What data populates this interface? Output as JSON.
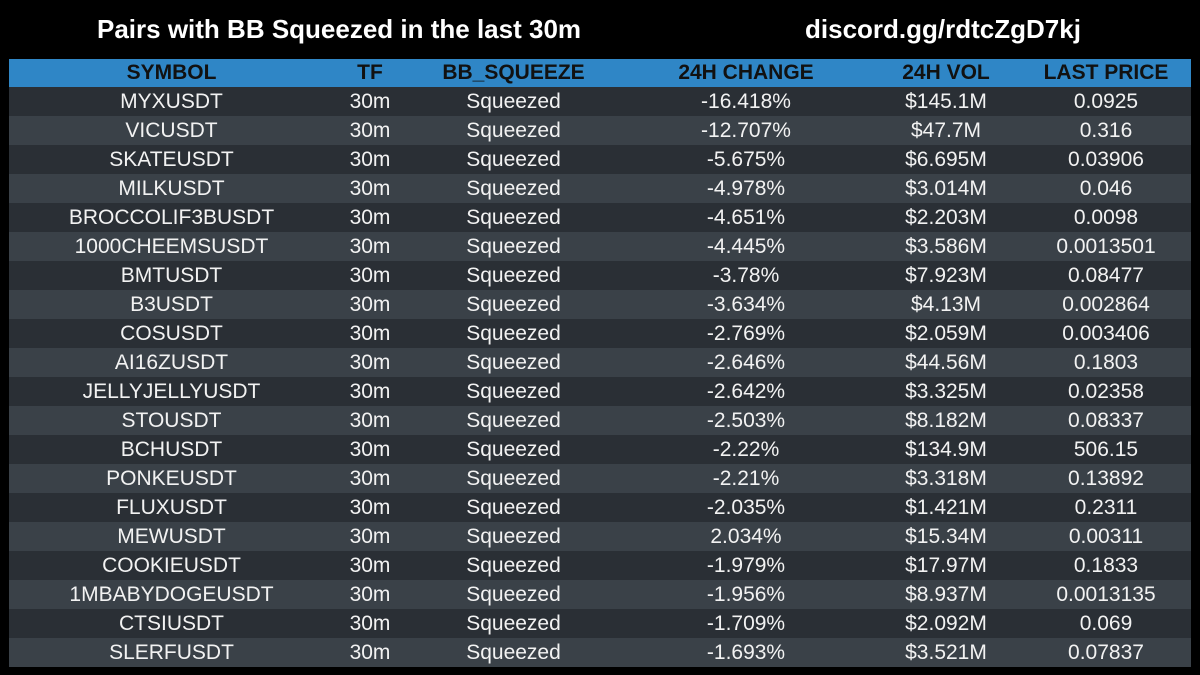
{
  "header": {
    "title": "Pairs with BB Squeezed in the last 30m",
    "discord": "discord.gg/rdtcZgD7kj"
  },
  "colors": {
    "background": "#000000",
    "header_row": "#2f86c6",
    "row_dark": "#2a2f35",
    "row_light": "#3a4148"
  },
  "table": {
    "columns": [
      "SYMBOL",
      "TF",
      "BB_SQUEEZE",
      "24H CHANGE",
      "24H VOL",
      "LAST PRICE"
    ],
    "rows": [
      [
        "MYXUSDT",
        "30m",
        "Squeezed",
        "-16.418%",
        "$145.1M",
        "0.0925"
      ],
      [
        "VICUSDT",
        "30m",
        "Squeezed",
        "-12.707%",
        "$47.7M",
        "0.316"
      ],
      [
        "SKATEUSDT",
        "30m",
        "Squeezed",
        "-5.675%",
        "$6.695M",
        "0.03906"
      ],
      [
        "MILKUSDT",
        "30m",
        "Squeezed",
        "-4.978%",
        "$3.014M",
        "0.046"
      ],
      [
        "BROCCOLIF3BUSDT",
        "30m",
        "Squeezed",
        "-4.651%",
        "$2.203M",
        "0.0098"
      ],
      [
        "1000CHEEMSUSDT",
        "30m",
        "Squeezed",
        "-4.445%",
        "$3.586M",
        "0.0013501"
      ],
      [
        "BMTUSDT",
        "30m",
        "Squeezed",
        "-3.78%",
        "$7.923M",
        "0.08477"
      ],
      [
        "B3USDT",
        "30m",
        "Squeezed",
        "-3.634%",
        "$4.13M",
        "0.002864"
      ],
      [
        "COSUSDT",
        "30m",
        "Squeezed",
        "-2.769%",
        "$2.059M",
        "0.003406"
      ],
      [
        "AI16ZUSDT",
        "30m",
        "Squeezed",
        "-2.646%",
        "$44.56M",
        "0.1803"
      ],
      [
        "JELLYJELLYUSDT",
        "30m",
        "Squeezed",
        "-2.642%",
        "$3.325M",
        "0.02358"
      ],
      [
        "STOUSDT",
        "30m",
        "Squeezed",
        "-2.503%",
        "$8.182M",
        "0.08337"
      ],
      [
        "BCHUSDT",
        "30m",
        "Squeezed",
        "-2.22%",
        "$134.9M",
        "506.15"
      ],
      [
        "PONKEUSDT",
        "30m",
        "Squeezed",
        "-2.21%",
        "$3.318M",
        "0.13892"
      ],
      [
        "FLUXUSDT",
        "30m",
        "Squeezed",
        "-2.035%",
        "$1.421M",
        "0.2311"
      ],
      [
        "MEWUSDT",
        "30m",
        "Squeezed",
        "2.034%",
        "$15.34M",
        "0.00311"
      ],
      [
        "COOKIEUSDT",
        "30m",
        "Squeezed",
        "-1.979%",
        "$17.97M",
        "0.1833"
      ],
      [
        "1MBABYDOGEUSDT",
        "30m",
        "Squeezed",
        "-1.956%",
        "$8.937M",
        "0.0013135"
      ],
      [
        "CTSIUSDT",
        "30m",
        "Squeezed",
        "-1.709%",
        "$2.092M",
        "0.069"
      ],
      [
        "SLERFUSDT",
        "30m",
        "Squeezed",
        "-1.693%",
        "$3.521M",
        "0.07837"
      ]
    ]
  }
}
